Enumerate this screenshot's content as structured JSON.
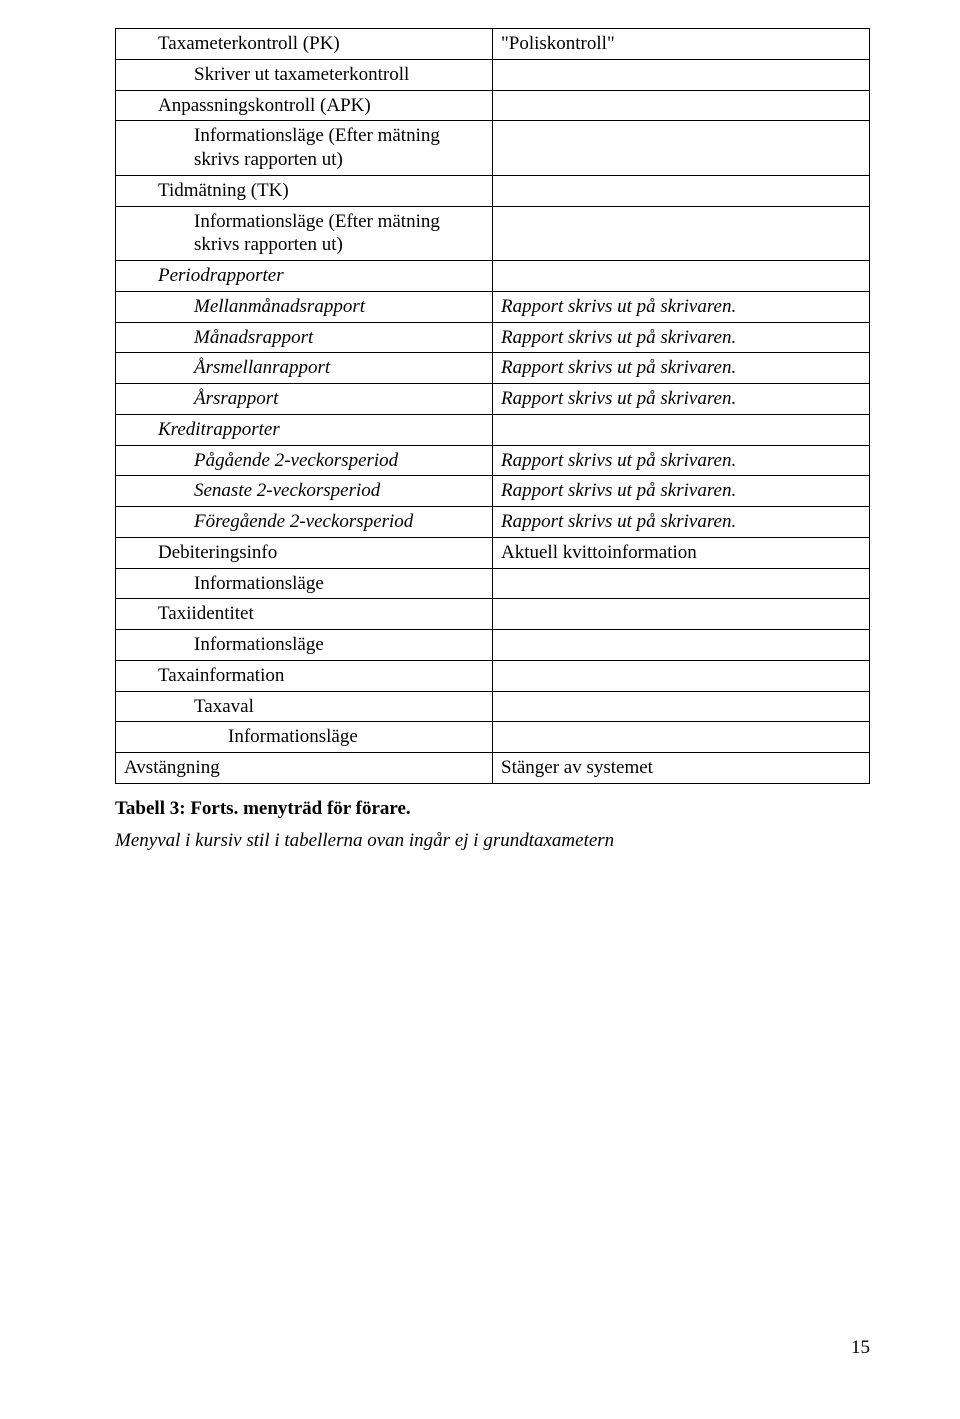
{
  "rows": [
    {
      "c1": "Taxameterkontroll (PK)",
      "c2": "\"Poliskontroll\"",
      "indent": 1,
      "italic": false
    },
    {
      "c1": "Skriver ut taxameterkontroll",
      "c2": "",
      "indent": 2,
      "italic": false
    },
    {
      "c1": "Anpassningskontroll (APK)",
      "c2": "",
      "indent": 1,
      "italic": false
    },
    {
      "c1": "Informationsläge (Efter mätning skrivs rapporten ut)",
      "c2": "",
      "indent": 2,
      "italic": false
    },
    {
      "c1": "Tidmätning (TK)",
      "c2": "",
      "indent": 1,
      "italic": false
    },
    {
      "c1": "Informationsläge (Efter mätning skrivs rapporten ut)",
      "c2": "",
      "indent": 2,
      "italic": false
    },
    {
      "c1": "Periodrapporter",
      "c2": "",
      "indent": 1,
      "italic": true
    },
    {
      "c1": "Mellanmånadsrapport",
      "c2": "Rapport skrivs ut på skrivaren.",
      "indent": 2,
      "italic": true
    },
    {
      "c1": "Månadsrapport",
      "c2": "Rapport skrivs ut på skrivaren.",
      "indent": 2,
      "italic": true
    },
    {
      "c1": "Årsmellanrapport",
      "c2": "Rapport skrivs ut på skrivaren.",
      "indent": 2,
      "italic": true
    },
    {
      "c1": "Årsrapport",
      "c2": "Rapport skrivs ut på skrivaren.",
      "indent": 2,
      "italic": true
    },
    {
      "c1": "Kreditrapporter",
      "c2": "",
      "indent": 1,
      "italic": true
    },
    {
      "c1": "Pågående 2-veckorsperiod",
      "c2": "Rapport skrivs ut på skrivaren.",
      "indent": 2,
      "italic": true
    },
    {
      "c1": "Senaste 2-veckorsperiod",
      "c2": "Rapport skrivs ut på skrivaren.",
      "indent": 2,
      "italic": true
    },
    {
      "c1": "Föregående 2-veckorsperiod",
      "c2": "Rapport skrivs ut på skrivaren.",
      "indent": 2,
      "italic": true
    },
    {
      "c1": "Debiteringsinfo",
      "c2": "Aktuell kvittoinformation",
      "indent": 1,
      "italic": false
    },
    {
      "c1": "Informationsläge",
      "c2": "",
      "indent": 2,
      "italic": false
    },
    {
      "c1": "Taxiidentitet",
      "c2": "",
      "indent": 1,
      "italic": false
    },
    {
      "c1": "Informationsläge",
      "c2": "",
      "indent": 2,
      "italic": false
    },
    {
      "c1": "Taxainformation",
      "c2": "",
      "indent": 1,
      "italic": false
    },
    {
      "c1": "Taxaval",
      "c2": "",
      "indent": 2,
      "italic": false
    },
    {
      "c1": "Informationsläge",
      "c2": "",
      "indent": 2,
      "italic": false,
      "extra_indent": true
    },
    {
      "c1": "Avstängning",
      "c2": "Stänger av systemet",
      "indent": 0,
      "italic": false
    }
  ],
  "caption": "Tabell 3: Forts. menyträd för förare.",
  "note": "Menyval i kursiv stil i tabellerna ovan ingår ej i grundtaxametern",
  "page_number": "15"
}
